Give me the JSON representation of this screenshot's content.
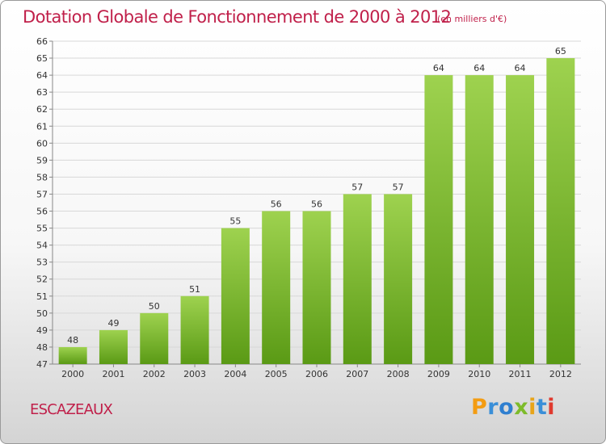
{
  "header": {
    "title": "Dotation Globale de Fonctionnement de 2000 à 2012",
    "unit": "(en milliers d'€)"
  },
  "footer": {
    "commune": "ESCAZEAUX",
    "logo": "Proxiti"
  },
  "colors": {
    "title": "#c0204a",
    "bar_top": "#9ed24f",
    "bar_bottom": "#5a9a15",
    "grid": "#d8d8d8",
    "logo_letters": [
      "#f39c12",
      "#3a8fd8",
      "#2f7fd0",
      "#7dbb2a",
      "#e8a51a",
      "#3a8fd8",
      "#e03a2f"
    ]
  },
  "chart_data": {
    "type": "bar",
    "title": "Dotation Globale de Fonctionnement de 2000 à 2012",
    "subtitle": "(en milliers d'€)",
    "xlabel": "",
    "ylabel": "",
    "categories": [
      "2000",
      "2001",
      "2002",
      "2003",
      "2004",
      "2005",
      "2006",
      "2007",
      "2008",
      "2009",
      "2010",
      "2011",
      "2012"
    ],
    "values": [
      48,
      49,
      50,
      51,
      55,
      56,
      56,
      57,
      57,
      64,
      64,
      64,
      65
    ],
    "ylim": [
      47,
      66
    ],
    "yticks": [
      47,
      48,
      49,
      50,
      51,
      52,
      53,
      54,
      55,
      56,
      57,
      58,
      59,
      60,
      61,
      62,
      63,
      64,
      65,
      66
    ],
    "grid": true,
    "data_labels": true
  }
}
